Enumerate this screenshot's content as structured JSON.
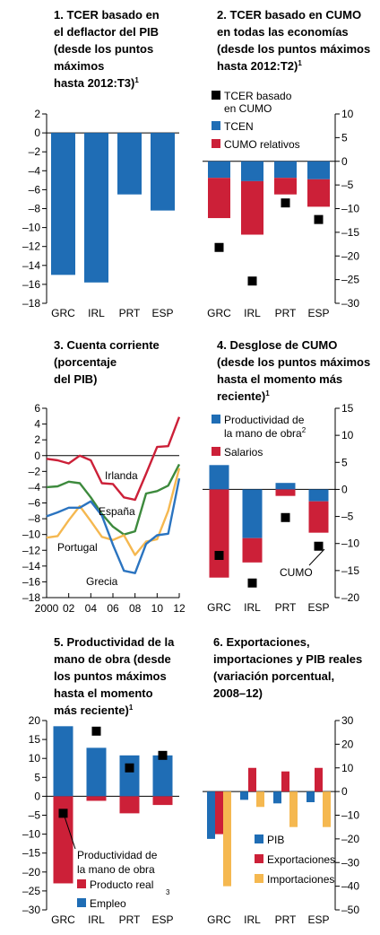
{
  "colors": {
    "blue": "#1f6db5",
    "red": "#cc2038",
    "marker": "#000000",
    "grecia": "#2b74c0",
    "espana": "#3d8a3d",
    "portugal": "#f5b850",
    "irlanda": "#cc2038"
  },
  "chart_data": [
    {
      "id": "p1",
      "type": "bar",
      "title": [
        "1. TCER basado en",
        "el deflactor del PIB",
        "(desde los puntos",
        "máximos",
        "hasta 2012:T3)"
      ],
      "title_sup": "1",
      "categories": [
        "GRC",
        "IRL",
        "PRT",
        "ESP"
      ],
      "series": [
        {
          "values": [
            -15.0,
            -15.8,
            -6.5,
            -8.2
          ]
        }
      ],
      "ylim": [
        -18,
        2
      ],
      "yticks": [
        "2",
        "0",
        "–2",
        "–4",
        "–6",
        "–8",
        "–10",
        "–12",
        "–14",
        "–16",
        "–18"
      ],
      "axis_side": "left"
    },
    {
      "id": "p2",
      "type": "bar",
      "title": [
        "2. TCER basado en CUMO",
        "en todas las economías",
        "(desde los puntos máximos",
        "hasta 2012:T2)"
      ],
      "title_sup": "1",
      "categories": [
        "GRC",
        "IRL",
        "PRT",
        "ESP"
      ],
      "series": [
        {
          "name": "TCEN",
          "values": [
            -3.5,
            -4.2,
            -3.5,
            -3.8
          ]
        },
        {
          "name": "CUMO relativos",
          "values": [
            -8.5,
            -11.3,
            -3.5,
            -5.8
          ]
        }
      ],
      "markers": {
        "name": "TCER basado en CUMO",
        "values": [
          -18.2,
          -25.3,
          -8.8,
          -12.3
        ]
      },
      "ylim": [
        -30,
        10
      ],
      "yticks": [
        "10",
        "5",
        "0",
        "–5",
        "–10",
        "–15",
        "–20",
        "–25",
        "–30"
      ],
      "axis_side": "right",
      "legend_lines": {
        "markers": [
          "TCER basado",
          "en CUMO"
        ],
        "s0": [
          "TCEN"
        ],
        "s1": [
          "CUMO relativos"
        ]
      }
    },
    {
      "id": "p3",
      "type": "line",
      "title": [
        "3. Cuenta corriente",
        "(porcentaje",
        "del PIB)"
      ],
      "x": [
        2000,
        2001,
        2002,
        2003,
        2004,
        2005,
        2006,
        2007,
        2008,
        2009,
        2010,
        2011,
        2012
      ],
      "xticks": [
        "2000",
        "02",
        "04",
        "06",
        "08",
        "10",
        "12"
      ],
      "xtick_values": [
        2000,
        2002,
        2004,
        2006,
        2008,
        2010,
        2012
      ],
      "series": [
        {
          "name": "Irlanda",
          "values": [
            -0.4,
            -0.6,
            -1.0,
            0.0,
            -0.6,
            -3.5,
            -3.6,
            -5.3,
            -5.6,
            -2.3,
            1.1,
            1.2,
            4.9
          ]
        },
        {
          "name": "España",
          "values": [
            -4.0,
            -3.9,
            -3.3,
            -3.5,
            -5.3,
            -7.4,
            -9.0,
            -10.0,
            -9.6,
            -4.8,
            -4.5,
            -3.8,
            -1.1
          ]
        },
        {
          "name": "Portugal",
          "values": [
            -10.4,
            -10.2,
            -8.2,
            -6.4,
            -8.3,
            -10.3,
            -10.7,
            -10.1,
            -12.6,
            -10.9,
            -10.6,
            -7.0,
            -1.6
          ]
        },
        {
          "name": "Grecia",
          "values": [
            -7.7,
            -7.2,
            -6.6,
            -6.6,
            -5.8,
            -7.6,
            -11.3,
            -14.6,
            -14.9,
            -11.2,
            -10.1,
            -9.9,
            -2.9
          ]
        }
      ],
      "ylim": [
        -18,
        6
      ],
      "yticks": [
        "6",
        "4",
        "2",
        "0",
        "–2",
        "–4",
        "–6",
        "–8",
        "–10",
        "–12",
        "–14",
        "–16",
        "–18"
      ],
      "axis_side": "left"
    },
    {
      "id": "p4",
      "type": "bar",
      "title": [
        "4. Desglose de CUMO",
        "(desde los puntos máximos",
        "hasta el momento más",
        "reciente)"
      ],
      "title_sup": "1",
      "categories": [
        "GRC",
        "IRL",
        "PRT",
        "ESP"
      ],
      "series": [
        {
          "name": "Productividad de la mano de obra",
          "values": [
            4.5,
            -9.0,
            1.2,
            -2.2
          ]
        },
        {
          "name": "Salarios",
          "values": [
            -16.3,
            -4.5,
            -1.2,
            -5.8
          ]
        }
      ],
      "markers": {
        "name": "CUMO",
        "values": [
          -12.2,
          -17.3,
          -5.2,
          -10.5
        ]
      },
      "ylim": [
        -20,
        15
      ],
      "yticks": [
        "15",
        "10",
        "5",
        "0",
        "–5",
        "–10",
        "–15",
        "–20"
      ],
      "axis_side": "right",
      "legend_lines": {
        "s0": [
          "Productividad de",
          "la mano de obra"
        ],
        "s0_sup": "2",
        "s1": [
          "Salarios"
        ],
        "markers": [
          "CUMO"
        ]
      }
    },
    {
      "id": "p5",
      "type": "bar",
      "title": [
        "5. Productividad de la",
        "mano de obra (desde",
        "los puntos máximos",
        "hasta el momento",
        "más reciente)"
      ],
      "title_sup": "1",
      "categories": [
        "GRC",
        "IRL",
        "PRT",
        "ESP"
      ],
      "series": [
        {
          "name": "Producto real",
          "values": [
            -23.0,
            -1.2,
            -4.5,
            -2.3
          ]
        },
        {
          "name": "Empleo",
          "values": [
            18.5,
            12.8,
            10.8,
            10.8
          ]
        }
      ],
      "markers": {
        "name": "Productividad de la mano de obra",
        "values": [
          -4.5,
          17.2,
          7.5,
          10.8
        ]
      },
      "ylim": [
        -30,
        20
      ],
      "yticks": [
        "20",
        "15",
        "10",
        "5",
        "0",
        "–5",
        "–10",
        "–15",
        "–20",
        "–25",
        "–30"
      ],
      "axis_side": "left",
      "legend_lines": {
        "markers": [
          "Productividad de",
          "la mano de obra"
        ],
        "s0": [
          "Producto real"
        ],
        "s1": [
          "Empleo"
        ],
        "note": "3"
      }
    },
    {
      "id": "p6",
      "type": "bar",
      "title": [
        "6. Exportaciones,",
        "importaciones y PIB reales",
        "(variación porcentual,",
        "2008–12)"
      ],
      "categories": [
        "GRC",
        "IRL",
        "PRT",
        "ESP"
      ],
      "series": [
        {
          "name": "PIB",
          "values": [
            -20.0,
            -3.5,
            -5.0,
            -4.5
          ]
        },
        {
          "name": "Exportaciones",
          "values": [
            -18.0,
            10.0,
            8.5,
            10.0
          ]
        },
        {
          "name": "Importaciones",
          "values": [
            -40.0,
            -6.5,
            -15.0,
            -15.0
          ]
        }
      ],
      "ylim": [
        -50,
        30
      ],
      "yticks": [
        "30",
        "20",
        "10",
        "0",
        "–10",
        "–20",
        "–30",
        "–40",
        "–50"
      ],
      "axis_side": "right"
    }
  ]
}
